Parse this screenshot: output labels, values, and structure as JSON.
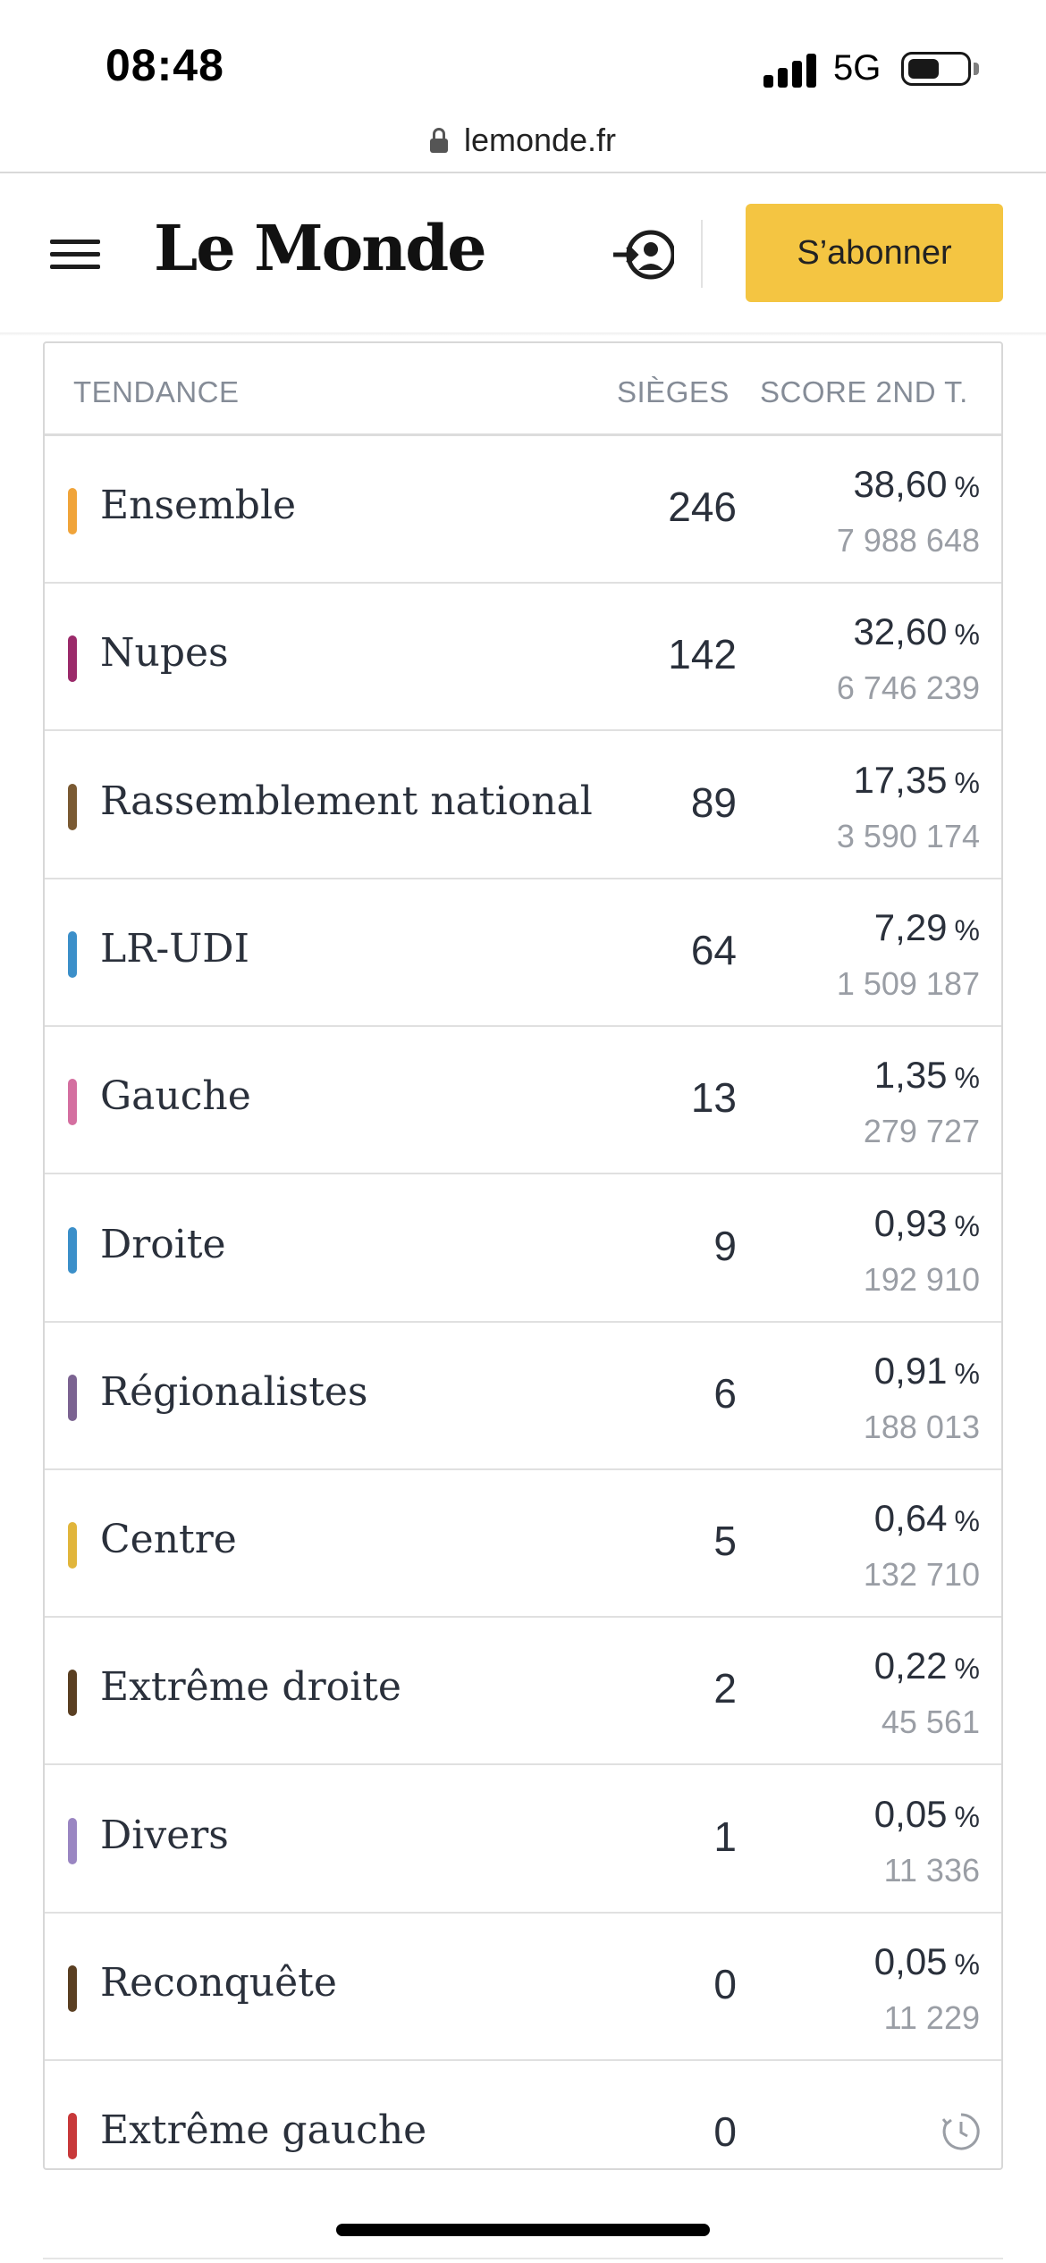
{
  "status_bar": {
    "time": "08:48",
    "network": "5G",
    "battery_level": 0.55
  },
  "browser": {
    "url": "lemonde.fr"
  },
  "header": {
    "logo": "Le Monde",
    "subscribe_label": "S’abonner",
    "subscribe_color": "#f4c542"
  },
  "table": {
    "headers": {
      "tendance": "TENDANCE",
      "sieges": "SIÈGES",
      "score": "SCORE 2ND T."
    },
    "percent_sign": "%",
    "rows": [
      {
        "party": "Ensemble",
        "seats": "246",
        "pct": "38,60",
        "votes": "7 988 648",
        "color": "#f0a43a"
      },
      {
        "party": "Nupes",
        "seats": "142",
        "pct": "32,60",
        "votes": "6 746 239",
        "color": "#9b2a6a"
      },
      {
        "party": "Rassemblement national",
        "seats": "89",
        "pct": "17,35",
        "votes": "3 590 174",
        "color": "#7a5a33"
      },
      {
        "party": "LR-UDI",
        "seats": "64",
        "pct": "7,29",
        "votes": "1 509 187",
        "color": "#3b8fc9"
      },
      {
        "party": "Gauche",
        "seats": "13",
        "pct": "1,35",
        "votes": "279 727",
        "color": "#d46fa0"
      },
      {
        "party": "Droite",
        "seats": "9",
        "pct": "0,93",
        "votes": "192 910",
        "color": "#3b8fc9"
      },
      {
        "party": "Régionalistes",
        "seats": "6",
        "pct": "0,91",
        "votes": "188 013",
        "color": "#7b6391"
      },
      {
        "party": "Centre",
        "seats": "5",
        "pct": "0,64",
        "votes": "132 710",
        "color": "#e1b53b"
      },
      {
        "party": "Extrême droite",
        "seats": "2",
        "pct": "0,22",
        "votes": "45 561",
        "color": "#5a3f22"
      },
      {
        "party": "Divers",
        "seats": "1",
        "pct": "0,05",
        "votes": "11 336",
        "color": "#9a86c2"
      },
      {
        "party": "Reconquête",
        "seats": "0",
        "pct": "0,05",
        "votes": "11 229",
        "color": "#5a3f22"
      },
      {
        "party": "Extrême gauche",
        "seats": "0",
        "pct": "",
        "votes": "",
        "color": "#c8393a",
        "icon": "clock-icon"
      }
    ]
  }
}
